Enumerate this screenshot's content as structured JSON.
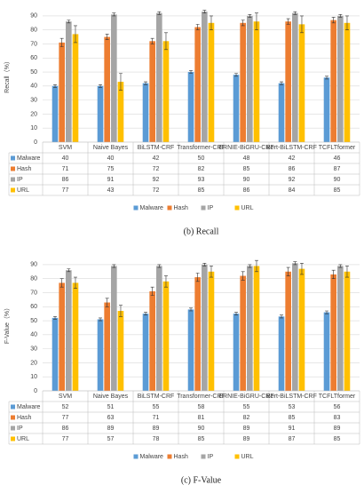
{
  "chart_data": [
    {
      "type": "bar",
      "y_label": "Recall（%）",
      "caption": "(b) Recall",
      "categories": [
        "SVM",
        "Naive Bayes",
        "BiLSTM-CRF",
        "Transformer-CRF",
        "ERNIE-BiGRU-CRF",
        "Bert-BiLSTM-CRF",
        "TCFLTformer"
      ],
      "series": [
        {
          "name": "Malware",
          "color": "#5b9bd5",
          "values": [
            40,
            40,
            42,
            50,
            48,
            42,
            46
          ],
          "errors": [
            1,
            1,
            1,
            1,
            1,
            1,
            1
          ]
        },
        {
          "name": "Hash",
          "color": "#ed7d31",
          "values": [
            71,
            75,
            72,
            82,
            85,
            86,
            87
          ],
          "errors": [
            3,
            2,
            2,
            2,
            2,
            2,
            2
          ]
        },
        {
          "name": "IP",
          "color": "#a5a5a5",
          "values": [
            86,
            91,
            92,
            93,
            90,
            92,
            90
          ],
          "errors": [
            1,
            1,
            1,
            1,
            1,
            1,
            1
          ]
        },
        {
          "name": "URL",
          "color": "#ffc000",
          "values": [
            77,
            43,
            72,
            85,
            86,
            84,
            85
          ],
          "errors": [
            6,
            6,
            6,
            5,
            6,
            6,
            5
          ]
        }
      ],
      "ylim": [
        0,
        95
      ],
      "yticks": [
        0,
        10,
        20,
        30,
        40,
        50,
        60,
        70,
        80,
        90
      ],
      "grid": true
    },
    {
      "type": "bar",
      "y_label": "F-Value（%）",
      "caption": "(c) F-Value",
      "categories": [
        "SVM",
        "Naive Bayes",
        "BiLSTM-CRF",
        "Transformer-CRF",
        "ERNIE-BiGRU-CRF",
        "Bert-BiLSTM-CRF",
        "TCFLTformer"
      ],
      "series": [
        {
          "name": "Malware",
          "color": "#5b9bd5",
          "values": [
            52,
            51,
            55,
            58,
            55,
            53,
            56
          ],
          "errors": [
            1,
            1,
            1,
            1,
            1,
            1,
            1
          ]
        },
        {
          "name": "Hash",
          "color": "#ed7d31",
          "values": [
            77,
            63,
            71,
            81,
            82,
            85,
            83
          ],
          "errors": [
            3,
            3,
            3,
            3,
            3,
            3,
            3
          ]
        },
        {
          "name": "IP",
          "color": "#a5a5a5",
          "values": [
            86,
            89,
            89,
            90,
            89,
            91,
            89
          ],
          "errors": [
            1,
            1,
            1,
            1,
            1,
            1,
            1
          ]
        },
        {
          "name": "URL",
          "color": "#ffc000",
          "values": [
            77,
            57,
            78,
            85,
            89,
            87,
            85
          ],
          "errors": [
            4,
            4,
            4,
            4,
            4,
            4,
            4
          ]
        }
      ],
      "ylim": [
        0,
        95
      ],
      "yticks": [
        0,
        10,
        20,
        30,
        40,
        50,
        60,
        70,
        80,
        90
      ],
      "grid": true
    }
  ]
}
